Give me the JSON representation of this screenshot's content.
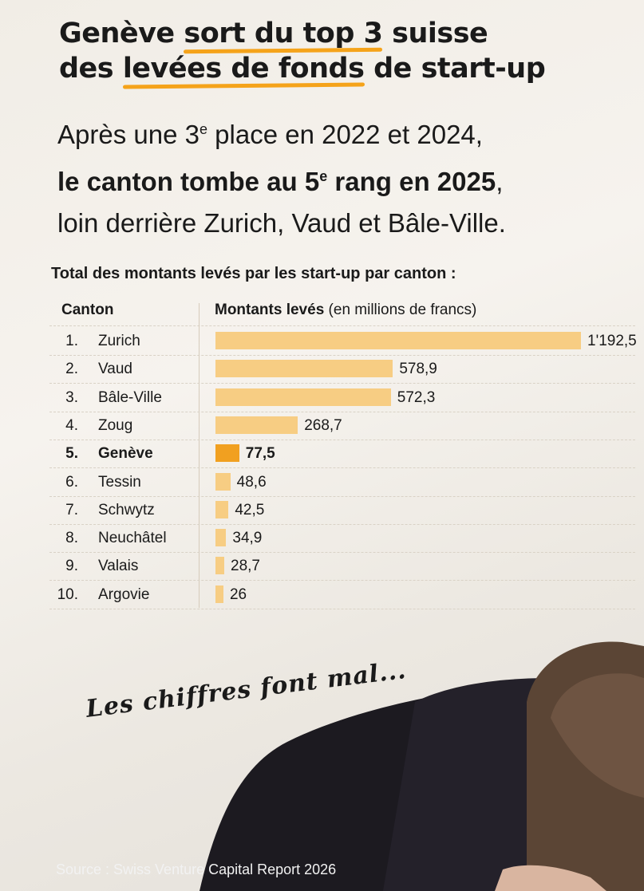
{
  "title": {
    "part1": "Genève ",
    "hl1": "sort du top 3",
    "part2": " suisse",
    "part3": "des ",
    "hl2": "levées de fonds",
    "part4": " de start-up"
  },
  "subtitle": {
    "l1a": "Après une 3",
    "l1sup": "e",
    "l1b": " place en 2022 et 2024,",
    "l2a": "le canton tombe au 5",
    "l2sup": "e",
    "l2b": " rang en 2025",
    "l2c": ",",
    "l3": "loin derrière Zurich, Vaud et Bâle-Ville."
  },
  "colors": {
    "accent": "#f1a020",
    "bar": "#f7cd83",
    "underline": "#f5a31a"
  },
  "chart_data": {
    "type": "bar",
    "orientation": "horizontal",
    "title": "Total des montants levés par les start-up par canton :",
    "col_canton": "Canton",
    "col_amount_bold": "Montants levés",
    "col_amount_unit": " (en millions de francs)",
    "highlight": "Genève",
    "rows": [
      {
        "rank": "1.",
        "name": "Zurich",
        "value": 1192.5,
        "label": "1'192,5"
      },
      {
        "rank": "2.",
        "name": "Vaud",
        "value": 578.9,
        "label": "578,9"
      },
      {
        "rank": "3.",
        "name": "Bâle-Ville",
        "value": 572.3,
        "label": "572,3"
      },
      {
        "rank": "4.",
        "name": "Zoug",
        "value": 268.7,
        "label": "268,7"
      },
      {
        "rank": "5.",
        "name": "Genève",
        "value": 77.5,
        "label": "77,5"
      },
      {
        "rank": "6.",
        "name": "Tessin",
        "value": 48.6,
        "label": "48,6"
      },
      {
        "rank": "7.",
        "name": "Schwytz",
        "value": 42.5,
        "label": "42,5"
      },
      {
        "rank": "8.",
        "name": "Neuchâtel",
        "value": 34.9,
        "label": "34,9"
      },
      {
        "rank": "9.",
        "name": "Valais",
        "value": 28.7,
        "label": "28,7"
      },
      {
        "rank": "10.",
        "name": "Argovie",
        "value": 26,
        "label": "26"
      }
    ]
  },
  "slogan": "Les chiffres font mal...",
  "source": "Source : Swiss Venture Capital Report 2026"
}
